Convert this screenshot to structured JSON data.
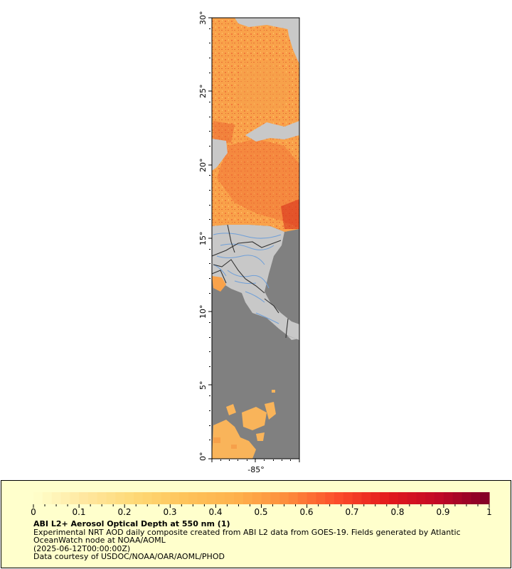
{
  "map": {
    "lat_ticks": [
      "0°",
      "5°",
      "10°",
      "15°",
      "20°",
      "25°",
      "30°"
    ],
    "lon_ticks": [
      "-85°"
    ],
    "colors": {
      "ocean_nodata": "#808080",
      "land": "#c8c8c8",
      "rivers": "#6f9fd8",
      "borders": "#333333",
      "aod_low": "#ffd071",
      "aod_high": "#d8181c"
    }
  },
  "legend": {
    "background": "#ffffcc",
    "colorbar_ticks": [
      "0",
      "0.1",
      "0.2",
      "0.3",
      "0.4",
      "0.5",
      "0.6",
      "0.7",
      "0.8",
      "0.9",
      "1"
    ],
    "colorbar_colors": [
      "#ffffcc",
      "#ffe7a0",
      "#fed976",
      "#fec35a",
      "#feb24c",
      "#fd8d3c",
      "#fc4e2a",
      "#e31a1c",
      "#c10926",
      "#800026"
    ],
    "title": "ABI L2+ Aerosol Optical Depth at 550 nm (1)",
    "line1": "Experimental NRT AOD daily composite created from ABI L2 data from GOES-19. Fields generated by Atlantic",
    "line2": "OceanWatch node at NOAA/AOML",
    "line3": "(2025-06-12T00:00:00Z)",
    "line4": "Data courtesy of USDOC/NOAA/OAR/AOML/PHOD"
  }
}
